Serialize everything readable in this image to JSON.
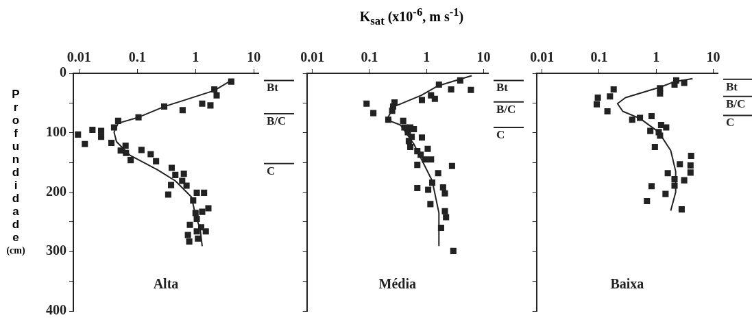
{
  "chart_data": [
    {
      "type": "scatter",
      "ylabel": "Profundidade (cm)",
      "annotations": [
        "Alta"
      ],
      "log": "x",
      "grid": false,
      "xlim": [
        0.008,
        12
      ],
      "xticks": [
        0.01,
        0.1,
        1,
        10
      ],
      "ylim": [
        400,
        0
      ],
      "yticks": [
        0,
        {
          "value": 50,
          "label": null
        },
        100,
        {
          "value": 150,
          "label": null
        },
        200,
        {
          "value": 250,
          "label": null
        },
        300,
        {
          "value": 350,
          "label": null
        },
        400
      ],
      "ref_lines": [
        {
          "axis": "y",
          "value": 12,
          "label": "Bt"
        },
        {
          "axis": "y",
          "value": 68,
          "label": "B/C"
        },
        {
          "axis": "y",
          "value": 152,
          "label": "C"
        }
      ],
      "series": [
        {
          "type": "scatter",
          "marker": "square",
          "color": "#222222",
          "x": [
            4.1,
            2.1,
            2.3,
            1.3,
            1.8,
            0.29,
            0.6,
            0.105,
            0.047,
            0.04,
            0.017,
            0.024,
            0.024,
            0.0096,
            0.0126,
            0.036,
            0.063,
            0.052,
            0.064,
            0.077,
            0.118,
            0.17,
            0.21,
            0.39,
            0.45,
            0.63,
            0.59,
            0.7,
            0.38,
            0.34,
            1.05,
            1.4,
            0.91,
            1.66,
            1.3,
            1.0,
            1.05,
            0.8,
            1.25,
            1.5,
            1.05,
            0.74,
            1.1,
            0.78
          ],
          "values": [
            14,
            27,
            37,
            51,
            54,
            56,
            62,
            74,
            80,
            91,
            95,
            97,
            107,
            103,
            119,
            117,
            122,
            130,
            134,
            146,
            129,
            136,
            148,
            159,
            171,
            169,
            181,
            189,
            188,
            204,
            201,
            201,
            214,
            227,
            233,
            235,
            245,
            255,
            259,
            266,
            266,
            272,
            278,
            283
          ]
        },
        {
          "type": "line",
          "marker": "none",
          "color": "#222222",
          "x": [
            4.1,
            2.1,
            0.29,
            0.105,
            0.047,
            0.04,
            0.044,
            0.075,
            0.22,
            0.45,
            0.85,
            1.0,
            1.2,
            1.3
          ],
          "values": [
            12,
            29,
            56,
            74,
            84,
            99,
            115,
            138,
            162,
            181,
            208,
            239,
            262,
            291
          ]
        }
      ]
    },
    {
      "type": "scatter",
      "xlabel": "K$_{sat}$ (x10$^{-6}$, m s$^{-1}$)",
      "annotations": [
        "Média"
      ],
      "log": "x",
      "grid": false,
      "tick_labels": "x",
      "xlim": [
        0.008,
        12
      ],
      "xticks": [
        0.01,
        0.1,
        1,
        10
      ],
      "ylim": [
        400,
        0
      ],
      "yticks": [
        0,
        50,
        100,
        150,
        200,
        250,
        300,
        350,
        400
      ],
      "ref_lines": [
        {
          "axis": "y",
          "value": 12,
          "label": "Bt"
        },
        {
          "axis": "y",
          "value": 48,
          "label": "B/C"
        },
        {
          "axis": "y",
          "value": 91,
          "label": "C"
        }
      ],
      "series": [
        {
          "type": "scatter",
          "marker": "square",
          "color": "#222222",
          "x": [
            3.9,
            1.65,
            2.7,
            6.0,
            0.83,
            1.4,
            1.2,
            0.089,
            0.275,
            0.26,
            0.25,
            0.117,
            0.214,
            0.39,
            0.41,
            0.52,
            0.6,
            0.47,
            0.55,
            0.83,
            0.49,
            0.52,
            0.69,
            1.05,
            0.79,
            0.95,
            1.2,
            0.69,
            2.8,
            1.6,
            1.26,
            0.69,
            1.07,
            1.95,
            2.1,
            1.17,
            2.1,
            2.2,
            1.8,
            2.95
          ],
          "values": [
            12,
            19,
            27,
            28,
            45,
            43,
            37,
            51,
            49,
            56,
            63,
            67,
            78,
            80,
            91,
            91,
            94,
            99,
            107,
            108,
            114,
            124,
            131,
            127,
            137,
            145,
            145,
            154,
            156,
            168,
            184,
            193,
            196,
            192,
            202,
            220,
            232,
            242,
            260,
            299
          ]
        },
        {
          "type": "line",
          "marker": "none",
          "color": "#222222",
          "x": [
            6.2,
            1.6,
            0.81,
            0.27,
            0.2,
            0.35,
            0.6,
            1.26,
            1.65,
            1.65
          ],
          "values": [
            4,
            21,
            37,
            56,
            78,
            87,
            119,
            181,
            235,
            290
          ]
        }
      ]
    },
    {
      "type": "scatter",
      "annotations": [
        "Baixa"
      ],
      "log": "x",
      "grid": false,
      "tick_labels": "x",
      "xlim": [
        0.008,
        12
      ],
      "xticks": [
        0.01,
        0.1,
        1,
        10
      ],
      "ylim": [
        400,
        0
      ],
      "yticks": [
        0,
        50,
        100,
        150,
        200,
        250,
        300,
        350,
        400
      ],
      "ref_lines": [
        {
          "axis": "y",
          "value": 10,
          "label": "Bt"
        },
        {
          "axis": "y",
          "value": 39,
          "label": "B/C"
        },
        {
          "axis": "y",
          "value": 71,
          "label": "C"
        }
      ],
      "series": [
        {
          "type": "scatter",
          "marker": "square",
          "color": "#222222",
          "x": [
            2.25,
            3.1,
            2.1,
            1.17,
            1.17,
            0.18,
            0.155,
            0.095,
            0.091,
            0.14,
            0.38,
            0.52,
            0.83,
            1.22,
            1.5,
            0.79,
            1.11,
            1.17,
            0.95,
            4.1,
            2.6,
            4.0,
            4.0,
            1.6,
            2.1,
            3.1,
            2.1,
            0.83,
            1.46,
            0.69,
            2.8
          ],
          "values": [
            12,
            16,
            19,
            25,
            34,
            27,
            39,
            41,
            52,
            64,
            78,
            75,
            72,
            87,
            91,
            97,
            99,
            105,
            124,
            139,
            153,
            155,
            167,
            168,
            178,
            180,
            189,
            190,
            203,
            215,
            229
          ]
        },
        {
          "type": "line",
          "marker": "none",
          "color": "#222222",
          "x": [
            4.35,
            2.1,
            1.2,
            0.29,
            0.21,
            0.26,
            0.52,
            1.11,
            1.8,
            2.2,
            2.2,
            1.8
          ],
          "values": [
            9,
            14,
            23,
            41,
            51,
            64,
            76,
            99,
            130,
            165,
            200,
            231
          ]
        }
      ]
    }
  ]
}
